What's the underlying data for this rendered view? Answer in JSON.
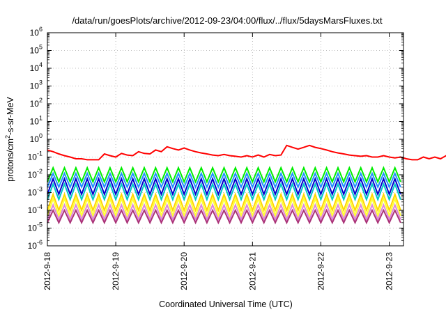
{
  "chart_data": {
    "type": "line",
    "title": "/data/run/goesPlots/archive/2012-09-23/04:00/flux/../flux/5daysMarsFluxes.txt",
    "xlabel": "Coordinated Universal Time (UTC)",
    "ylabel_parts": [
      "protons/cm",
      "2",
      "-s-sr-MeV"
    ],
    "y_scale": "log",
    "ylim": [
      1e-06,
      1000000.0
    ],
    "y_ticks": [
      {
        "base": "10",
        "exp": "-6",
        "value": -6
      },
      {
        "base": "10",
        "exp": "-5",
        "value": -5
      },
      {
        "base": "10",
        "exp": "-4",
        "value": -4
      },
      {
        "base": "10",
        "exp": "-3",
        "value": -3
      },
      {
        "base": "10",
        "exp": "-2",
        "value": -2
      },
      {
        "base": "10",
        "exp": "-1",
        "value": -1
      },
      {
        "base": "10",
        "exp": "0",
        "value": 0
      },
      {
        "base": "10",
        "exp": "1",
        "value": 1
      },
      {
        "base": "10",
        "exp": "2",
        "value": 2
      },
      {
        "base": "10",
        "exp": "3",
        "value": 3
      },
      {
        "base": "10",
        "exp": "4",
        "value": 4
      },
      {
        "base": "10",
        "exp": "5",
        "value": 5
      },
      {
        "base": "10",
        "exp": "6",
        "value": 6
      }
    ],
    "xlim": [
      "2012-09-18T00:00",
      "2012-09-23T05:00"
    ],
    "x_ticks": [
      "2012-9-18",
      "2012-9-19",
      "2012-9-20",
      "2012-9-21",
      "2012-9-22",
      "2012-9-23"
    ],
    "grid": true,
    "legend": "none",
    "series": [
      {
        "color": "#ff0000",
        "t_start": "2012-09-18T00:00",
        "step_hours": 2,
        "values": [
          0.25,
          0.2,
          0.15,
          0.12,
          0.1,
          0.08,
          0.08,
          0.07,
          0.07,
          0.07,
          0.15,
          0.12,
          0.1,
          0.16,
          0.13,
          0.12,
          0.2,
          0.16,
          0.15,
          0.25,
          0.2,
          0.38,
          0.3,
          0.25,
          0.32,
          0.25,
          0.2,
          0.17,
          0.15,
          0.13,
          0.12,
          0.14,
          0.12,
          0.11,
          0.1,
          0.12,
          0.1,
          0.13,
          0.1,
          0.14,
          0.12,
          0.13,
          0.45,
          0.35,
          0.28,
          0.35,
          0.45,
          0.35,
          0.3,
          0.25,
          0.2,
          0.17,
          0.15,
          0.13,
          0.12,
          0.11,
          0.12,
          0.1,
          0.1,
          0.12,
          0.1,
          0.09,
          0.1,
          0.08,
          0.07,
          0.07,
          0.1,
          0.08,
          0.1,
          0.08,
          0.12,
          0.1,
          0.15,
          0.12,
          0.18,
          0.15,
          0.25,
          0.2,
          0.18,
          0.3,
          0.22,
          0.18,
          0.15,
          0.25,
          0.2,
          0.3,
          0.22,
          0.18,
          0.14,
          0.16,
          0.13,
          0.12,
          0.1,
          0.09,
          0.08,
          0.07,
          0.06,
          0.05,
          0.1,
          0.08,
          0.06,
          0.2,
          0.16,
          0.12,
          0.1,
          0.15,
          0.12,
          0.25,
          0.2,
          0.18,
          0.28,
          0.22,
          0.2,
          0.15,
          0.2,
          0.16,
          0.14,
          0.17,
          0.14,
          0.12,
          0.13,
          0.12,
          0.1,
          0.11
        ]
      },
      {
        "color": "#00ee00",
        "periodic": true,
        "min": 0.004,
        "max": 0.025
      },
      {
        "color": "#1e90ff",
        "periodic": true,
        "min": 0.002,
        "max": 0.012
      },
      {
        "color": "#0000cd",
        "periodic": true,
        "min": 0.0008,
        "max": 0.006
      },
      {
        "color": "#00c8c8",
        "periodic": true,
        "min": 0.0004,
        "max": 0.003
      },
      {
        "color": "#ffd700",
        "periodic": true,
        "min": 0.0001,
        "max": 0.0008
      },
      {
        "color": "#ffff33",
        "periodic": true,
        "min": 5e-05,
        "max": 0.00045
      },
      {
        "color": "#dd88dd",
        "periodic": true,
        "min": 3e-05,
        "max": 0.0002
      },
      {
        "color": "#aa3377",
        "periodic": true,
        "min": 2e-05,
        "max": 0.0001
      }
    ],
    "periodic_step_hours": 2,
    "periodic_cycle_hours": 4
  }
}
